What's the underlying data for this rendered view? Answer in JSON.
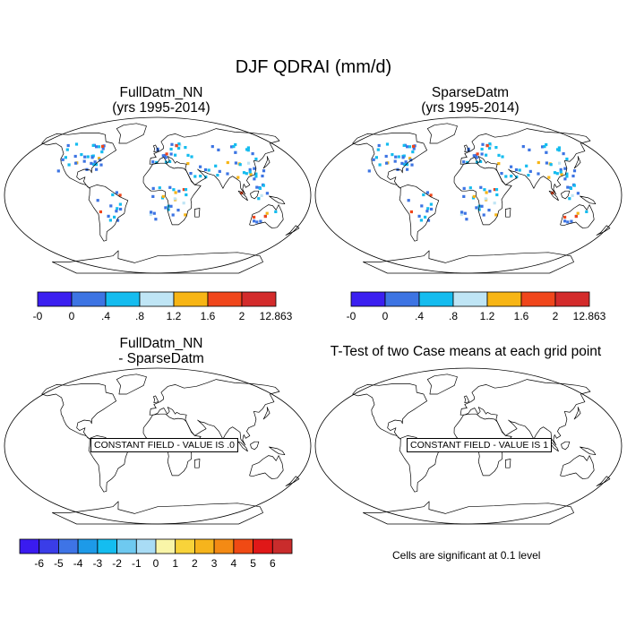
{
  "title": "DJF QDRAI (mm/d)",
  "panels": [
    {
      "name": "FullDatm_NN",
      "subtitle": "(yrs 1995-2014)"
    },
    {
      "name": "SparseDatm",
      "subtitle": "(yrs 1995-2014)"
    },
    {
      "name": "FullDatm_NN",
      "subtitle": "- SparseDatm",
      "constant_label": "CONSTANT FIELD - VALUE IS .0"
    },
    {
      "name": "T-Test of two Case means at each grid point",
      "constant_label": "CONSTANT FIELD - VALUE IS 1"
    }
  ],
  "colorbar_top": {
    "labels": [
      "-0",
      "0",
      ".4",
      ".8",
      "1.2",
      "1.6",
      "2",
      "12.863"
    ],
    "colors": [
      "#3b1ff0",
      "#3d74e3",
      "#15bcef",
      "#bfe5f5",
      "#f7b515",
      "#f0461b",
      "#d32b2b"
    ]
  },
  "colorbar_diff": {
    "labels": [
      "-6",
      "-5",
      "-4",
      "-3",
      "-2",
      "-1",
      "0",
      "1",
      "2",
      "3",
      "4",
      "5",
      "6"
    ],
    "colors": [
      "#3a1bf0",
      "#3a3de8",
      "#3e74e6",
      "#1d9ae8",
      "#14bdf0",
      "#6ec9f0",
      "#a9dcf5",
      "#f9f5a8",
      "#f8d33a",
      "#f6b41c",
      "#f48a14",
      "#f04a14",
      "#e01818",
      "#c92c2c"
    ]
  },
  "significance_note": "Cells are significant at 0.1 level"
}
